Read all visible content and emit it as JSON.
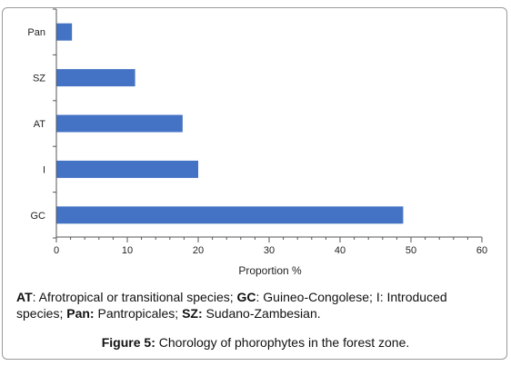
{
  "chart_data": {
    "type": "bar",
    "orientation": "horizontal",
    "categories": [
      "Pan",
      "SZ",
      "AT",
      "I",
      "GC"
    ],
    "values": [
      2.2,
      11.1,
      17.8,
      20.0,
      48.9
    ],
    "xlabel": "Proportion %",
    "ylabel": "",
    "xlim": [
      0,
      60
    ],
    "xticks": [
      "0",
      "10",
      "20",
      "30",
      "40",
      "50",
      "60"
    ],
    "grid": false,
    "bar_color": "#4472C4"
  },
  "caption": {
    "parts": [
      {
        "text": "AT",
        "bold": true
      },
      {
        "text": ": Afrotropical or transitional species; ",
        "bold": false
      },
      {
        "text": "GC",
        "bold": true
      },
      {
        "text": ": Guineo-Congolese; I: Introduced species; ",
        "bold": false
      },
      {
        "text": "Pan:",
        "bold": true
      },
      {
        "text": " Pantropicales; ",
        "bold": false
      },
      {
        "text": "SZ:",
        "bold": true
      },
      {
        "text": " Sudano-Zambesian.",
        "bold": false
      }
    ]
  },
  "figure": {
    "label": "Figure 5:",
    "title": " Chorology of phorophytes in the forest zone."
  }
}
